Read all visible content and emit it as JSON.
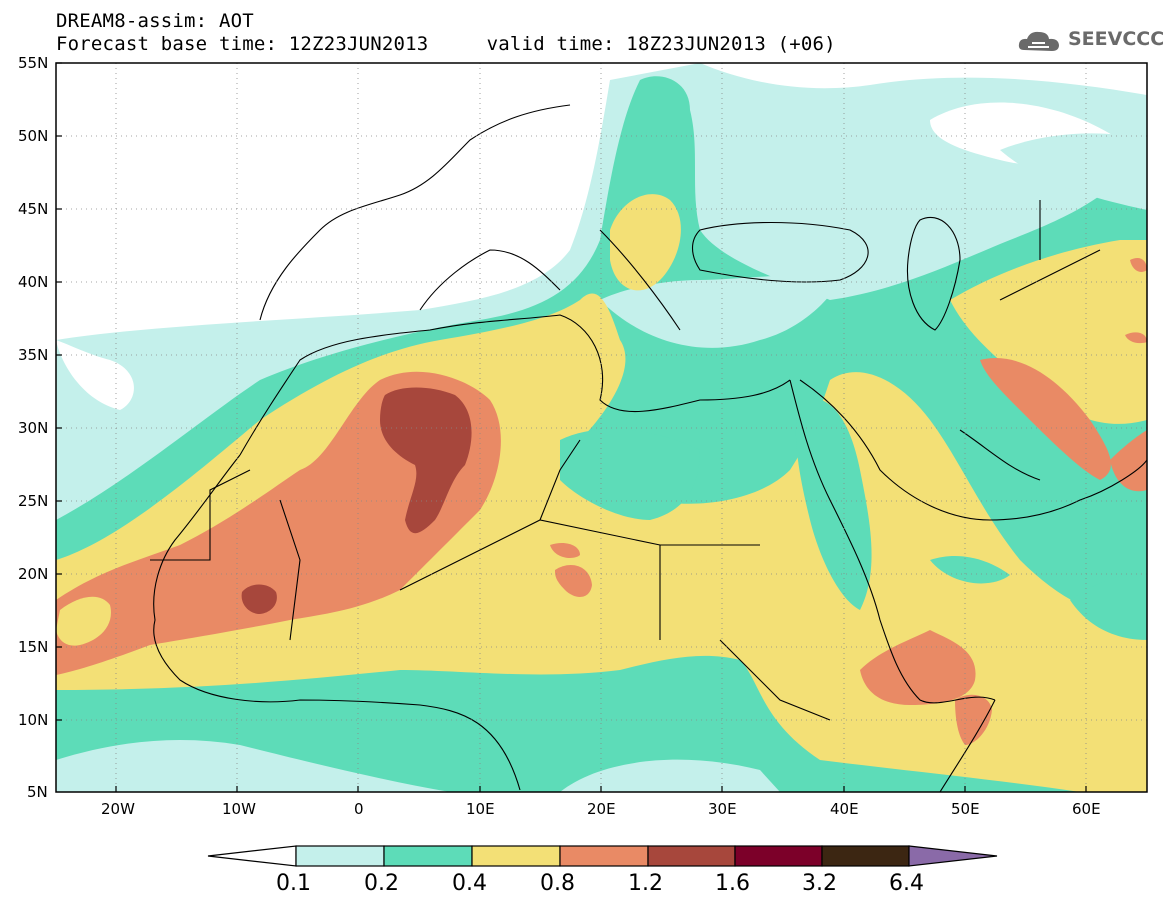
{
  "header": {
    "line1": "DREAM8-assim: AOT",
    "line2": "Forecast base time: 12Z23JUN2013     valid time: 18Z23JUN2013 (+06)"
  },
  "logo": {
    "text": "SEEVCCC",
    "icon": "cloud-icon"
  },
  "map": {
    "lat_labels": [
      "55N",
      "50N",
      "45N",
      "40N",
      "35N",
      "30N",
      "25N",
      "20N",
      "15N",
      "10N",
      "5N"
    ],
    "lon_labels": [
      "20W",
      "10W",
      "0",
      "10E",
      "20E",
      "30E",
      "40E",
      "50E",
      "60E"
    ],
    "lat_range": [
      5,
      55
    ],
    "lon_range": [
      -25,
      65
    ]
  },
  "legend": {
    "labels": [
      "0.1",
      "0.2",
      "0.4",
      "0.8",
      "1.2",
      "1.6",
      "3.2",
      "6.4"
    ],
    "colors": [
      "#ffffff",
      "#c4f0eb",
      "#5ddcb8",
      "#f3e076",
      "#e98a65",
      "#a7473c",
      "#7c0029",
      "#3c2612",
      "#8a6aa8"
    ]
  }
}
